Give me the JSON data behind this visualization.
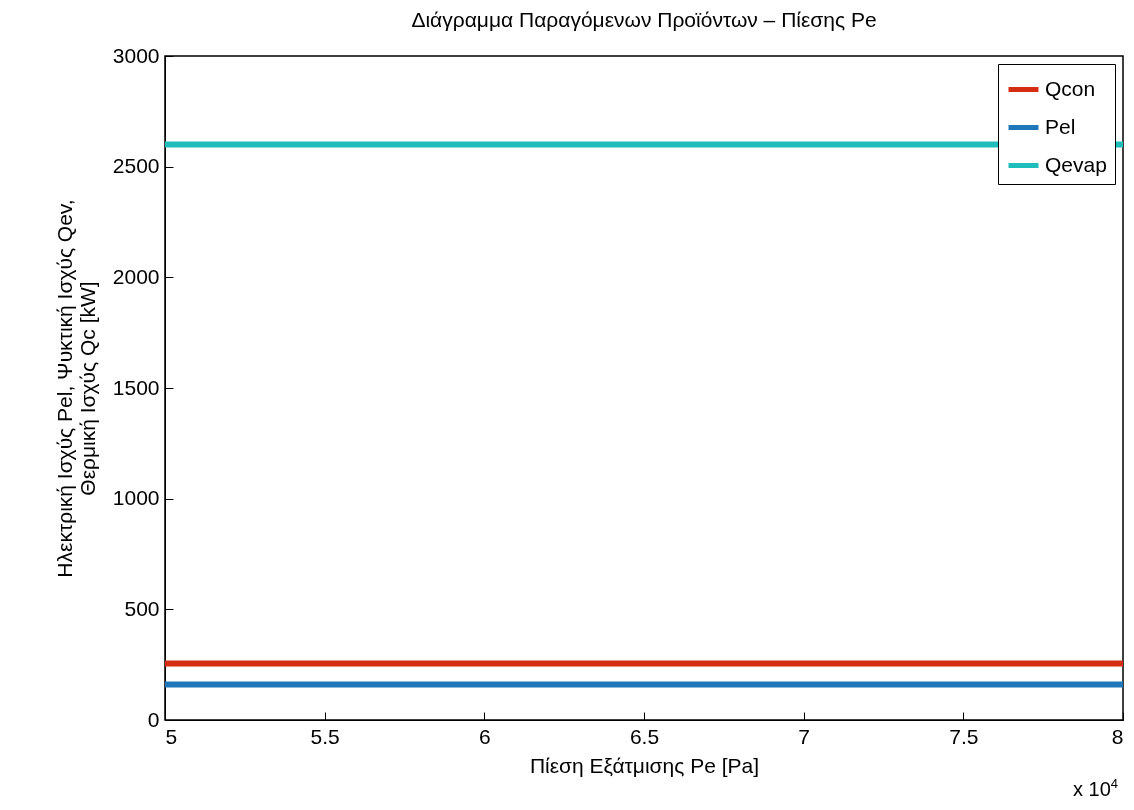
{
  "chart_data": {
    "type": "line",
    "title": "Διάγραμμα Παραγόμενων Προϊόντων – Πίεσης Pe",
    "xlabel": "Πίεση Εξάτμισης Pe [Pa]",
    "ylabel": "Ηλεκτρική Ισχύς Pel, Ψυκτική Ισχύς Qev,\nΘερμική Ισχύς Qc [kW]",
    "x": [
      5,
      8
    ],
    "series": [
      {
        "name": "Qcon",
        "color": "#d42d12",
        "values": [
          255,
          255
        ]
      },
      {
        "name": "Pel",
        "color": "#1f77b9",
        "values": [
          160,
          160
        ]
      },
      {
        "name": "Qevap",
        "color": "#1fbcbc",
        "values": [
          2600,
          2600
        ]
      }
    ],
    "xlim": [
      5,
      8
    ],
    "xticks": [
      5,
      5.5,
      6,
      6.5,
      7,
      7.5,
      8
    ],
    "ylim": [
      0,
      3000
    ],
    "yticks": [
      0,
      500,
      1000,
      1500,
      2000,
      2500,
      3000
    ],
    "annotations": [
      "x 10$^{4}$"
    ],
    "legend": "top right",
    "grid": false,
    "marker": "none",
    "line_style": "solid"
  }
}
